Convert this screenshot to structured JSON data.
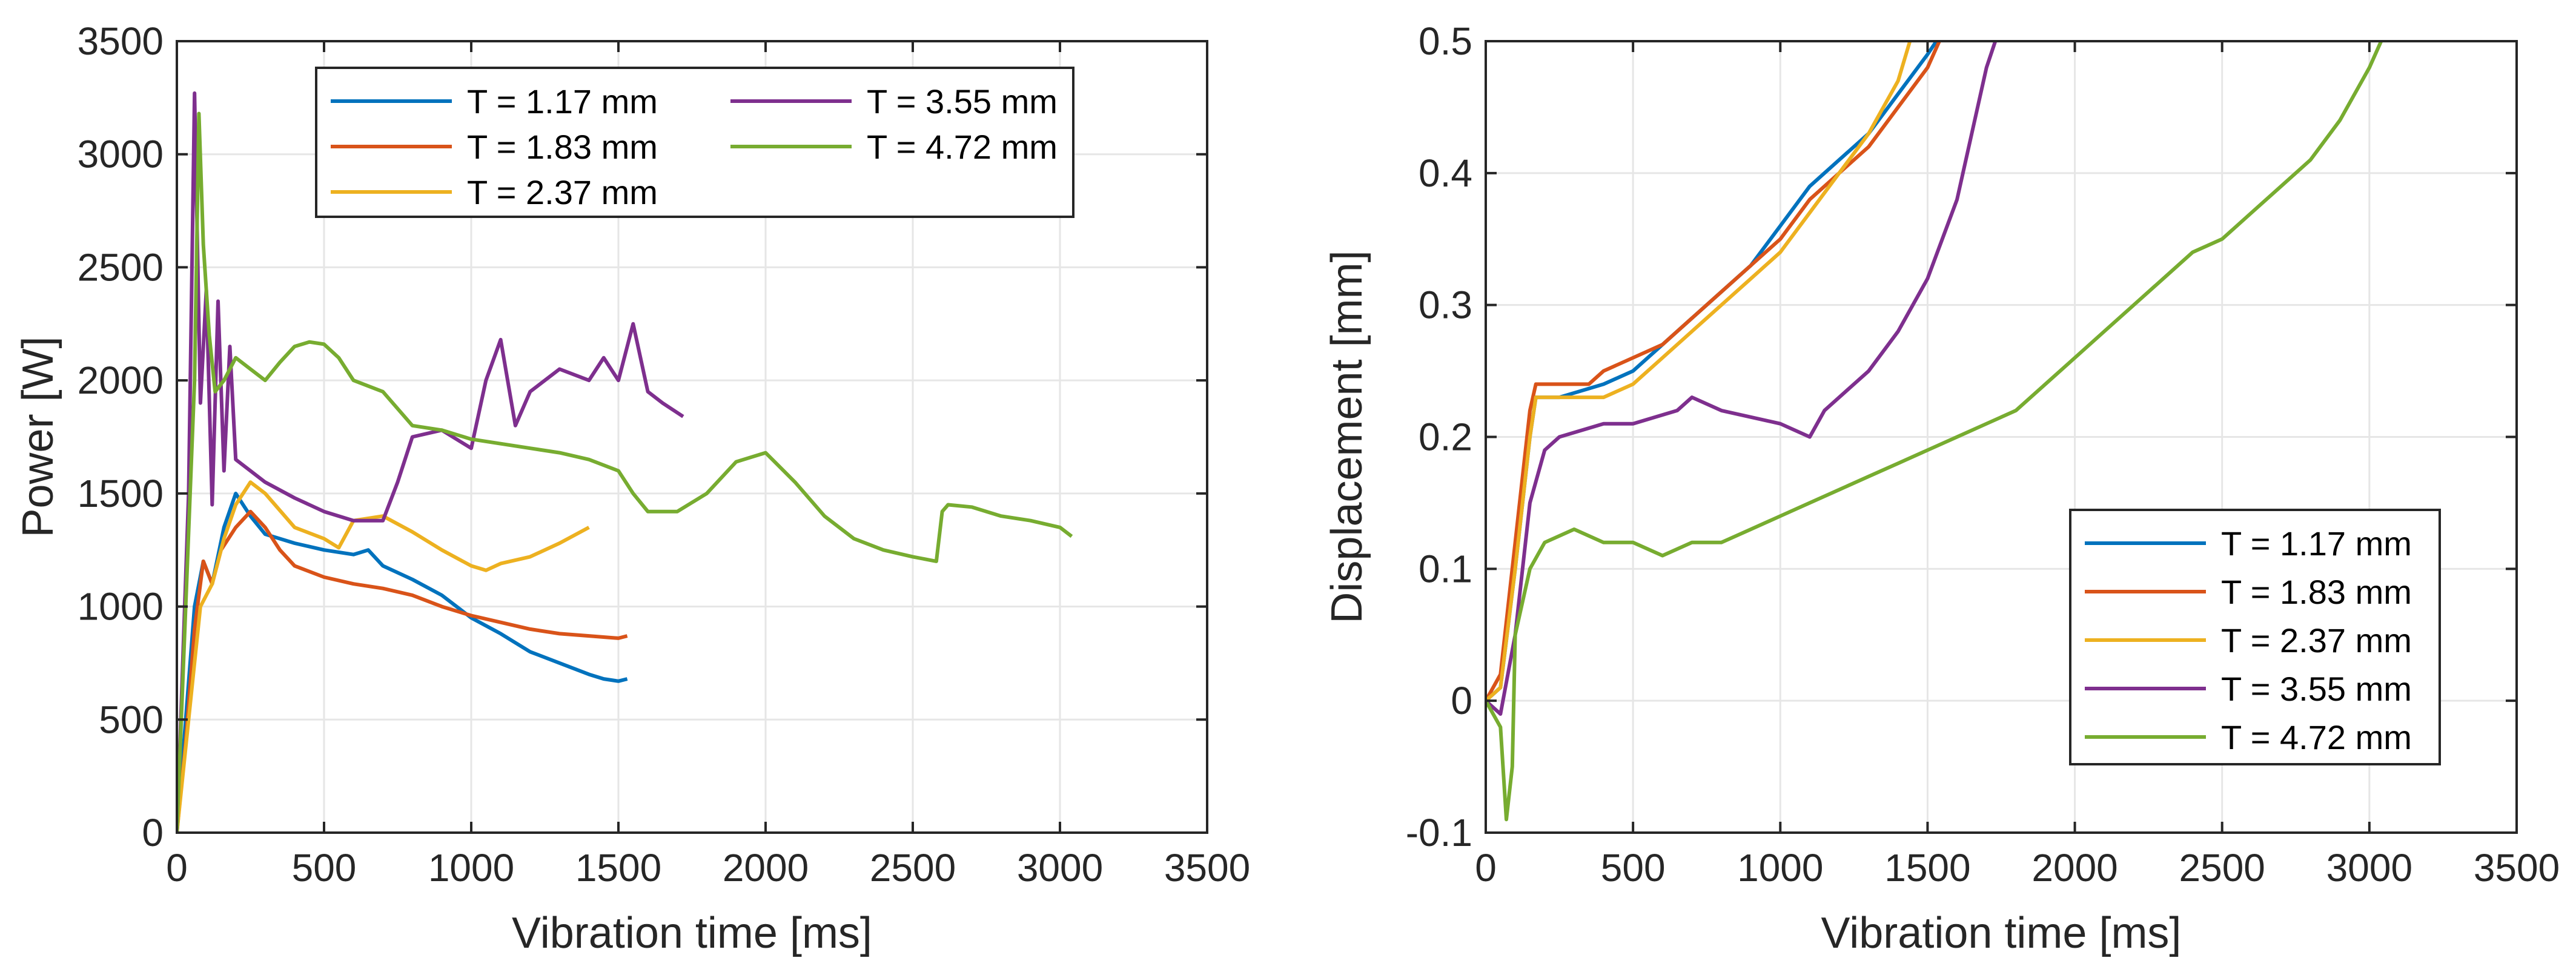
{
  "chart_data": [
    {
      "type": "line",
      "xlabel": "Vibration time [ms]",
      "ylabel": "Power [W]",
      "xlim": [
        0,
        3500
      ],
      "ylim": [
        0,
        3500
      ],
      "xticks": [
        "0",
        "500",
        "1000",
        "1500",
        "2000",
        "2500",
        "3000",
        "3500"
      ],
      "yticks": [
        "0",
        "500",
        "1000",
        "1500",
        "2000",
        "2500",
        "3000",
        "3500"
      ],
      "legend_location": "top-left, two columns",
      "series": [
        {
          "name": "T = 1.17 mm",
          "color": "#0072BD",
          "x": [
            0,
            30,
            60,
            90,
            120,
            160,
            200,
            250,
            300,
            400,
            500,
            600,
            650,
            700,
            800,
            900,
            1000,
            1100,
            1200,
            1300,
            1400,
            1450,
            1500,
            1530
          ],
          "y": [
            0,
            500,
            1000,
            1200,
            1100,
            1350,
            1500,
            1400,
            1320,
            1280,
            1250,
            1230,
            1250,
            1180,
            1120,
            1050,
            950,
            880,
            800,
            750,
            700,
            680,
            670,
            680
          ]
        },
        {
          "name": "T = 1.83 mm",
          "color": "#D95319",
          "x": [
            0,
            30,
            60,
            90,
            120,
            150,
            200,
            250,
            300,
            350,
            400,
            500,
            600,
            700,
            800,
            900,
            1000,
            1100,
            1200,
            1300,
            1400,
            1500,
            1530
          ],
          "y": [
            0,
            400,
            900,
            1200,
            1100,
            1250,
            1350,
            1420,
            1350,
            1250,
            1180,
            1130,
            1100,
            1080,
            1050,
            1000,
            960,
            930,
            900,
            880,
            870,
            860,
            870
          ]
        },
        {
          "name": "T = 2.37 mm",
          "color": "#EDB120",
          "x": [
            0,
            40,
            80,
            120,
            160,
            200,
            250,
            300,
            400,
            500,
            550,
            600,
            700,
            800,
            900,
            1000,
            1050,
            1100,
            1200,
            1300,
            1400
          ],
          "y": [
            0,
            500,
            1000,
            1100,
            1300,
            1450,
            1550,
            1500,
            1350,
            1300,
            1260,
            1380,
            1400,
            1330,
            1250,
            1180,
            1160,
            1190,
            1220,
            1280,
            1350
          ]
        },
        {
          "name": "T = 3.55 mm",
          "color": "#7E2F8E",
          "x": [
            0,
            40,
            60,
            80,
            100,
            120,
            140,
            160,
            180,
            200,
            250,
            300,
            400,
            500,
            600,
            700,
            750,
            800,
            900,
            1000,
            1050,
            1100,
            1150,
            1200,
            1300,
            1400,
            1450,
            1500,
            1550,
            1600,
            1650,
            1720
          ],
          "y": [
            0,
            1500,
            3270,
            1900,
            2400,
            1450,
            2350,
            1600,
            2150,
            1650,
            1600,
            1550,
            1480,
            1420,
            1380,
            1380,
            1550,
            1750,
            1780,
            1700,
            2000,
            2180,
            1800,
            1950,
            2050,
            2000,
            2100,
            2000,
            2250,
            1950,
            1900,
            1840
          ]
        },
        {
          "name": "T = 4.72 mm",
          "color": "#77AC30",
          "x": [
            0,
            30,
            60,
            75,
            90,
            110,
            130,
            160,
            200,
            250,
            300,
            350,
            400,
            450,
            500,
            550,
            600,
            700,
            800,
            900,
            1000,
            1100,
            1200,
            1300,
            1400,
            1500,
            1550,
            1600,
            1700,
            1800,
            1900,
            2000,
            2100,
            2200,
            2300,
            2400,
            2500,
            2580,
            2600,
            2620,
            2700,
            2800,
            2900,
            3000,
            3040
          ],
          "y": [
            0,
            1000,
            2000,
            3180,
            2600,
            2200,
            1950,
            2000,
            2100,
            2050,
            2000,
            2080,
            2150,
            2170,
            2160,
            2100,
            2000,
            1950,
            1800,
            1780,
            1740,
            1720,
            1700,
            1680,
            1650,
            1600,
            1500,
            1420,
            1420,
            1500,
            1640,
            1680,
            1550,
            1400,
            1300,
            1250,
            1220,
            1200,
            1420,
            1450,
            1440,
            1400,
            1380,
            1350,
            1310
          ]
        }
      ]
    },
    {
      "type": "line",
      "xlabel": "Vibration time [ms]",
      "ylabel": "Displacement [mm]",
      "xlim": [
        0,
        3500
      ],
      "ylim": [
        -0.1,
        0.5
      ],
      "xticks": [
        "0",
        "500",
        "1000",
        "1500",
        "2000",
        "2500",
        "3000",
        "3500"
      ],
      "yticks": [
        "-0.1",
        "0",
        "0.1",
        "0.2",
        "0.3",
        "0.4",
        "0.5"
      ],
      "legend_location": "bottom-right",
      "series": [
        {
          "name": "T = 1.17 mm",
          "color": "#0072BD",
          "x": [
            0,
            50,
            100,
            150,
            170,
            250,
            400,
            500,
            600,
            700,
            800,
            900,
            1000,
            1100,
            1200,
            1300,
            1400,
            1500,
            1530
          ],
          "y": [
            0,
            0.01,
            0.1,
            0.2,
            0.23,
            0.23,
            0.24,
            0.25,
            0.27,
            0.29,
            0.31,
            0.33,
            0.36,
            0.39,
            0.41,
            0.43,
            0.46,
            0.49,
            0.5
          ]
        },
        {
          "name": "T = 1.83 mm",
          "color": "#D95319",
          "x": [
            0,
            50,
            100,
            150,
            170,
            250,
            350,
            400,
            500,
            600,
            700,
            800,
            900,
            1000,
            1100,
            1200,
            1300,
            1400,
            1500,
            1540
          ],
          "y": [
            0,
            0.02,
            0.12,
            0.22,
            0.24,
            0.24,
            0.24,
            0.25,
            0.26,
            0.27,
            0.29,
            0.31,
            0.33,
            0.35,
            0.38,
            0.4,
            0.42,
            0.45,
            0.48,
            0.5
          ]
        },
        {
          "name": "T = 2.37 mm",
          "color": "#EDB120",
          "x": [
            0,
            50,
            100,
            150,
            170,
            250,
            400,
            500,
            600,
            700,
            800,
            900,
            1000,
            1100,
            1200,
            1300,
            1400,
            1440
          ],
          "y": [
            0,
            0.01,
            0.1,
            0.2,
            0.23,
            0.23,
            0.23,
            0.24,
            0.26,
            0.28,
            0.3,
            0.32,
            0.34,
            0.37,
            0.4,
            0.43,
            0.47,
            0.5
          ]
        },
        {
          "name": "T = 3.55 mm",
          "color": "#7E2F8E",
          "x": [
            0,
            50,
            100,
            150,
            200,
            250,
            400,
            500,
            650,
            700,
            800,
            1000,
            1100,
            1150,
            1200,
            1300,
            1400,
            1500,
            1600,
            1650,
            1700,
            1730
          ],
          "y": [
            0,
            -0.01,
            0.05,
            0.15,
            0.19,
            0.2,
            0.21,
            0.21,
            0.22,
            0.23,
            0.22,
            0.21,
            0.2,
            0.22,
            0.23,
            0.25,
            0.28,
            0.32,
            0.38,
            0.43,
            0.48,
            0.5
          ]
        },
        {
          "name": "T = 4.72 mm",
          "color": "#77AC30",
          "x": [
            0,
            50,
            70,
            90,
            100,
            150,
            200,
            300,
            400,
            500,
            600,
            700,
            800,
            900,
            1000,
            1100,
            1200,
            1300,
            1400,
            1500,
            1600,
            1700,
            1800,
            1900,
            2000,
            2100,
            2200,
            2300,
            2400,
            2500,
            2600,
            2700,
            2800,
            2900,
            3000,
            3040
          ],
          "y": [
            0,
            -0.02,
            -0.09,
            -0.05,
            0.05,
            0.1,
            0.12,
            0.13,
            0.12,
            0.12,
            0.11,
            0.12,
            0.12,
            0.13,
            0.14,
            0.15,
            0.16,
            0.17,
            0.18,
            0.19,
            0.2,
            0.21,
            0.22,
            0.24,
            0.26,
            0.28,
            0.3,
            0.32,
            0.34,
            0.35,
            0.37,
            0.39,
            0.41,
            0.44,
            0.48,
            0.5
          ]
        }
      ]
    }
  ]
}
